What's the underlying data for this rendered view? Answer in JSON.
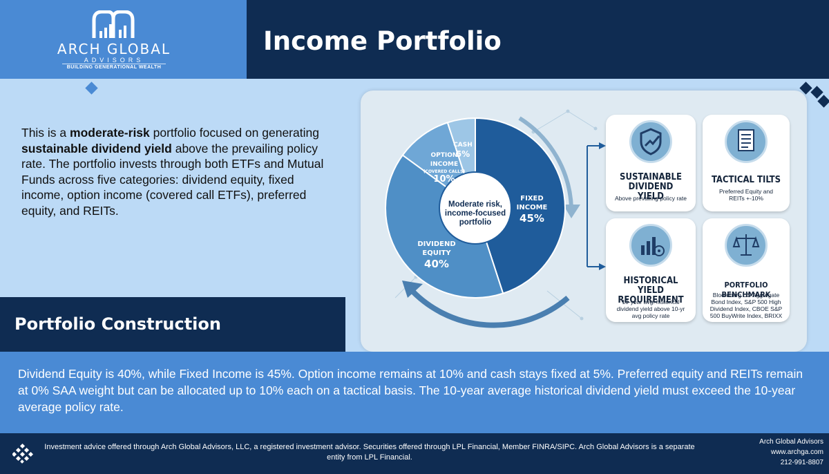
{
  "brand": {
    "name": "ARCH GLOBAL",
    "sub": "ADVISORS",
    "tagline": "BUILDING GENERATIONAL WEALTH"
  },
  "page": {
    "title": "Income Portfolio"
  },
  "intro": {
    "p1": "This is a ",
    "b1": "moderate-risk",
    "p2": " portfolio focused on generating ",
    "b2": "sustainable dividend yield",
    "p3": " above the prevailing policy rate. The portfolio invests through both ETFs and Mutual Funds across five categories: dividend equity, fixed income, option income (covered call ETFs), preferred equity, and REITs."
  },
  "construction": {
    "title": "Portfolio Construction"
  },
  "chart_data": {
    "type": "pie",
    "center_label": "Moderate risk, income-focused portfolio",
    "slices": [
      {
        "label": "FIXED INCOME",
        "value": 45,
        "display": "45%",
        "color": "#1f5c9b"
      },
      {
        "label": "DIVIDEND EQUITY",
        "value": 40,
        "display": "40%",
        "color": "#4f8fc6"
      },
      {
        "label": "OPTION INCOME",
        "sublabel": "(COVERED CALLS)",
        "value": 10,
        "display": "10%",
        "color": "#6fa7d6"
      },
      {
        "label": "CASH",
        "value": 5,
        "display": "5%",
        "color": "#9dc6e6"
      }
    ]
  },
  "tiles": [
    {
      "title": "SUSTAINABLE DIVIDEND YIELD",
      "desc": "Above prevailing policy rate",
      "icon": "shield-chart-icon"
    },
    {
      "title": "TACTICAL TILTS",
      "desc": "Preferred Equity and REITs +-10%",
      "icon": "document-list-icon"
    },
    {
      "title": "HISTORICAL YIELD REQUIREMENT",
      "desc": "10-year avg. historical dividend yield above 10-yr avg policy rate",
      "icon": "bar-chart-target-icon"
    },
    {
      "title": "PORTFOLIO BENCHMARK",
      "desc": "Bloomberg US Aggregate Bond Index, S&P 500 High Dividend Index, CBOE S&P 500 BuyWrite Index, BRIXX",
      "icon": "scale-target-icon"
    }
  ],
  "body": {
    "text": "Dividend Equity is 40%, while Fixed Income is 45%. Option income remains at 10% and cash stays fixed at 5%. Preferred equity and REITs remain at 0% SAA weight but can be allocated up to 10% each on a tactical basis. The 10-year average historical dividend yield must exceed the 10-year average policy rate."
  },
  "footer": {
    "disclaimer": "Investment advice offered through Arch Global Advisors, LLC, a registered investment advisor. Securities offered through LPL Financial, Member FINRA/SIPC. Arch Global Advisors is a separate entity from LPL Financial.",
    "company": "Arch Global Advisors",
    "website": "www.archga.com",
    "phone": "212-991-8807"
  },
  "colors": {
    "navy": "#0f2c52",
    "blue": "#4a8ad4",
    "light": "#bcdaf6"
  }
}
